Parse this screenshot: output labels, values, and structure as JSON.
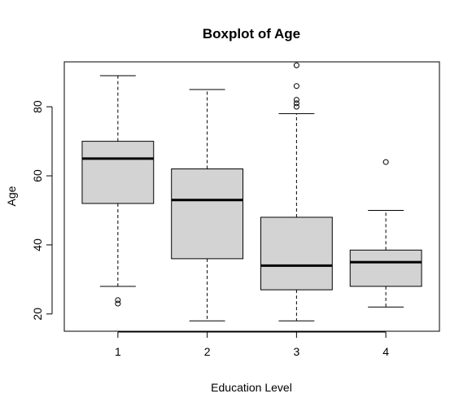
{
  "chart_data": {
    "type": "boxplot",
    "title": "Boxplot of Age",
    "xlabel": "Education Level",
    "ylabel": "Age",
    "categories": [
      "1",
      "2",
      "3",
      "4"
    ],
    "ylim": [
      15,
      93
    ],
    "yticks": [
      20,
      40,
      60,
      80
    ],
    "grid": false,
    "box_color": "#d3d3d3",
    "boxes": [
      {
        "category": "1",
        "whisker_low": 28,
        "q1": 52,
        "median": 65,
        "q3": 70,
        "whisker_high": 89,
        "outliers": [
          23,
          24
        ]
      },
      {
        "category": "2",
        "whisker_low": 18,
        "q1": 36,
        "median": 53,
        "q3": 62,
        "whisker_high": 85,
        "outliers": []
      },
      {
        "category": "3",
        "whisker_low": 18,
        "q1": 27,
        "median": 34,
        "q3": 48,
        "whisker_high": 78,
        "outliers": [
          80,
          81,
          82,
          86,
          92
        ]
      },
      {
        "category": "4",
        "whisker_low": 22,
        "q1": 28,
        "median": 35,
        "q3": 38.5,
        "whisker_high": 50,
        "outliers": [
          64
        ]
      }
    ]
  }
}
